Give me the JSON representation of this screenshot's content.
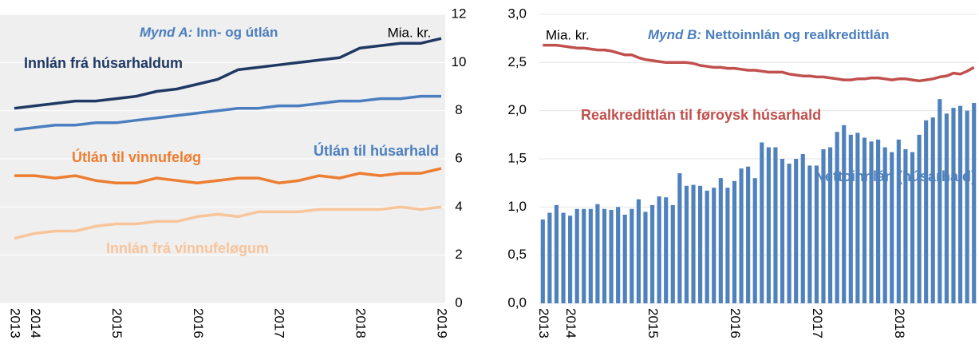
{
  "chart_data": [
    {
      "type": "line",
      "title_prefix": "Mynd A:",
      "title": "Inn- og útlán",
      "unit_label": "Mia. kr.",
      "yaxis_side": "right",
      "background": "#efefef",
      "grid_color": "#ffffff",
      "grid": true,
      "ylim": [
        0,
        12
      ],
      "yticks": [
        0,
        2,
        4,
        6,
        8,
        10,
        12
      ],
      "categories": [
        "2013",
        "2014",
        null,
        null,
        null,
        "2015",
        null,
        null,
        null,
        "2016",
        null,
        null,
        null,
        "2017",
        null,
        null,
        null,
        "2018",
        null,
        null,
        null,
        "2019"
      ],
      "series": [
        {
          "name": "Innlán frá húsarhaldum",
          "color": "#1f3864",
          "values": [
            8.1,
            8.2,
            8.3,
            8.4,
            8.4,
            8.5,
            8.6,
            8.8,
            8.9,
            9.1,
            9.3,
            9.7,
            9.8,
            9.9,
            10.0,
            10.1,
            10.2,
            10.6,
            10.7,
            10.8,
            10.8,
            11.0
          ]
        },
        {
          "name": "Útlán til húsarhald",
          "color": "#4a7ebf",
          "values": [
            7.2,
            7.3,
            7.4,
            7.4,
            7.5,
            7.5,
            7.6,
            7.7,
            7.8,
            7.9,
            8.0,
            8.1,
            8.1,
            8.2,
            8.2,
            8.3,
            8.4,
            8.4,
            8.5,
            8.5,
            8.6,
            8.6
          ]
        },
        {
          "name": "Útlán til vinnufeløg",
          "color": "#ed7d31",
          "values": [
            5.3,
            5.3,
            5.2,
            5.3,
            5.1,
            5.0,
            5.0,
            5.2,
            5.1,
            5.0,
            5.1,
            5.2,
            5.2,
            5.0,
            5.1,
            5.3,
            5.2,
            5.4,
            5.3,
            5.4,
            5.4,
            5.6
          ]
        },
        {
          "name": "Innlán frá vinnufeløgum",
          "color": "#f8c49a",
          "values": [
            2.7,
            2.9,
            3.0,
            3.0,
            3.2,
            3.3,
            3.3,
            3.4,
            3.4,
            3.6,
            3.7,
            3.6,
            3.8,
            3.8,
            3.8,
            3.9,
            3.9,
            3.9,
            3.9,
            4.0,
            3.9,
            4.0
          ]
        }
      ]
    },
    {
      "type": "bar",
      "title_prefix": "Mynd B:",
      "title": "Nettoinnlán og realkredittlán",
      "unit_label": "Mia. kr.",
      "yaxis_side": "left",
      "background": "#ffffff",
      "grid_color": "#e4e4e4",
      "grid": true,
      "ylim": [
        0,
        3
      ],
      "yticks": [
        {
          "value": 0,
          "label": "0,0"
        },
        {
          "value": 0.5,
          "label": "0,5"
        },
        {
          "value": 1,
          "label": "1,0"
        },
        {
          "value": 1.5,
          "label": "1,5"
        },
        {
          "value": 2,
          "label": "2,0"
        },
        {
          "value": 2.5,
          "label": "2,5"
        },
        {
          "value": 3,
          "label": "3,0"
        }
      ],
      "categories": [
        "2013",
        null,
        null,
        null,
        "2014",
        null,
        null,
        null,
        null,
        null,
        null,
        null,
        null,
        null,
        null,
        null,
        "2015",
        null,
        null,
        null,
        null,
        null,
        null,
        null,
        null,
        null,
        null,
        null,
        "2016",
        null,
        null,
        null,
        null,
        null,
        null,
        null,
        null,
        null,
        null,
        null,
        "2017",
        null,
        null,
        null,
        null,
        null,
        null,
        null,
        null,
        null,
        null,
        null,
        "2018",
        null,
        null,
        null,
        null,
        null,
        null,
        null,
        null,
        null,
        null,
        null
      ],
      "series": [
        {
          "name": "Nettoinnlán (húsarhald)",
          "color": "#4f81bd",
          "kind": "bar",
          "values": [
            0.87,
            0.94,
            1.02,
            0.94,
            0.91,
            0.98,
            0.98,
            0.98,
            1.03,
            0.98,
            0.97,
            1.0,
            0.92,
            0.98,
            1.08,
            0.95,
            1.02,
            1.11,
            1.1,
            1.02,
            1.35,
            1.22,
            1.23,
            1.22,
            1.17,
            1.2,
            1.3,
            1.2,
            1.27,
            1.4,
            1.42,
            1.3,
            1.67,
            1.62,
            1.62,
            1.5,
            1.45,
            1.5,
            1.55,
            1.43,
            1.43,
            1.6,
            1.62,
            1.78,
            1.85,
            1.75,
            1.77,
            1.72,
            1.68,
            1.7,
            1.62,
            1.57,
            1.7,
            1.6,
            1.57,
            1.75,
            1.9,
            1.93,
            2.12,
            1.97,
            2.03,
            2.05,
            2.0,
            2.08
          ]
        },
        {
          "name": "Realkredittlán til føroysk húsarhald",
          "color": "#c0504d",
          "kind": "line",
          "values": [
            2.68,
            2.68,
            2.68,
            2.67,
            2.66,
            2.65,
            2.65,
            2.64,
            2.63,
            2.63,
            2.62,
            2.6,
            2.58,
            2.58,
            2.55,
            2.53,
            2.52,
            2.51,
            2.5,
            2.5,
            2.5,
            2.5,
            2.49,
            2.47,
            2.46,
            2.45,
            2.45,
            2.44,
            2.44,
            2.43,
            2.42,
            2.42,
            2.41,
            2.4,
            2.4,
            2.4,
            2.38,
            2.37,
            2.36,
            2.36,
            2.35,
            2.35,
            2.34,
            2.33,
            2.32,
            2.32,
            2.33,
            2.33,
            2.34,
            2.34,
            2.33,
            2.32,
            2.33,
            2.33,
            2.32,
            2.31,
            2.32,
            2.33,
            2.35,
            2.36,
            2.39,
            2.38,
            2.41,
            2.45
          ]
        }
      ]
    }
  ]
}
